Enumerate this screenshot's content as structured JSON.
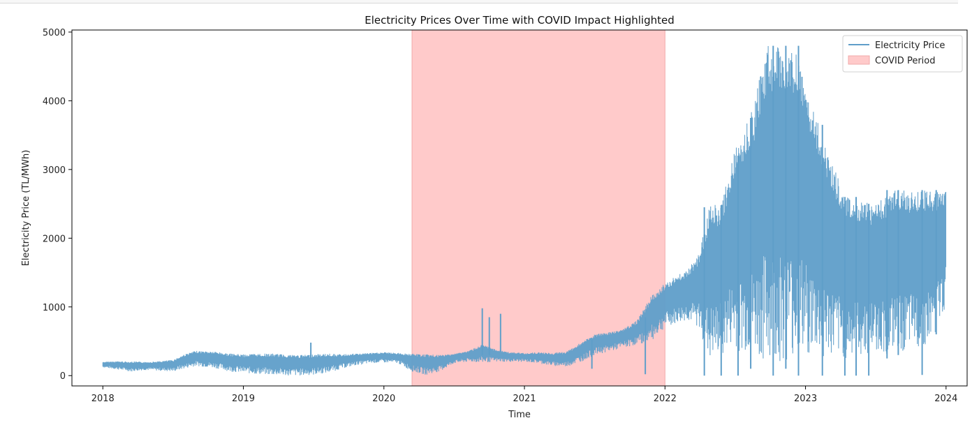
{
  "chart_data": {
    "type": "line",
    "title": "Electricity Prices Over Time with COVID Impact Highlighted",
    "xlabel": "Time",
    "ylabel": "Electricity Price (TL/MWh)",
    "xlim": [
      2017.78,
      2024.15
    ],
    "ylim": [
      -150,
      5030
    ],
    "x_ticks": [
      2018,
      2019,
      2020,
      2021,
      2022,
      2023,
      2024
    ],
    "x_tick_labels": [
      "2018",
      "2019",
      "2020",
      "2021",
      "2022",
      "2023",
      "2024"
    ],
    "y_ticks": [
      0,
      1000,
      2000,
      3000,
      4000,
      5000
    ],
    "y_tick_labels": [
      "0",
      "1000",
      "2000",
      "3000",
      "4000",
      "5000"
    ],
    "grid": false,
    "legend_position": "top-right",
    "legend": [
      "Electricity Price",
      "COVID Period"
    ],
    "highlight_period": {
      "name": "COVID Period",
      "start": 2020.2,
      "end": 2022.0,
      "color": "#ffcaca"
    },
    "series": [
      {
        "name": "Electricity Price",
        "color": "#5f9ec9",
        "envelope": [
          {
            "x": 2018.0,
            "low": 120,
            "high": 200
          },
          {
            "x": 2018.1,
            "low": 90,
            "high": 210
          },
          {
            "x": 2018.2,
            "low": 60,
            "high": 205
          },
          {
            "x": 2018.3,
            "low": 80,
            "high": 200
          },
          {
            "x": 2018.4,
            "low": 70,
            "high": 210
          },
          {
            "x": 2018.5,
            "low": 60,
            "high": 230
          },
          {
            "x": 2018.58,
            "low": 100,
            "high": 310
          },
          {
            "x": 2018.66,
            "low": 140,
            "high": 360
          },
          {
            "x": 2018.8,
            "low": 110,
            "high": 350
          },
          {
            "x": 2018.9,
            "low": 60,
            "high": 320
          },
          {
            "x": 2019.0,
            "low": 40,
            "high": 310
          },
          {
            "x": 2019.1,
            "low": 20,
            "high": 320
          },
          {
            "x": 2019.2,
            "low": 10,
            "high": 320
          },
          {
            "x": 2019.3,
            "low": 0,
            "high": 310
          },
          {
            "x": 2019.4,
            "low": 0,
            "high": 300
          },
          {
            "x": 2019.5,
            "low": 10,
            "high": 310
          },
          {
            "x": 2019.6,
            "low": 40,
            "high": 320
          },
          {
            "x": 2019.7,
            "low": 100,
            "high": 310
          },
          {
            "x": 2019.8,
            "low": 150,
            "high": 320
          },
          {
            "x": 2019.9,
            "low": 180,
            "high": 330
          },
          {
            "x": 2020.0,
            "low": 190,
            "high": 340
          },
          {
            "x": 2020.1,
            "low": 180,
            "high": 330
          },
          {
            "x": 2020.2,
            "low": 60,
            "high": 320
          },
          {
            "x": 2020.3,
            "low": 10,
            "high": 310
          },
          {
            "x": 2020.4,
            "low": 60,
            "high": 300
          },
          {
            "x": 2020.5,
            "low": 180,
            "high": 320
          },
          {
            "x": 2020.6,
            "low": 200,
            "high": 360
          },
          {
            "x": 2020.7,
            "low": 190,
            "high": 450
          },
          {
            "x": 2020.8,
            "low": 200,
            "high": 380
          },
          {
            "x": 2020.9,
            "low": 200,
            "high": 340
          },
          {
            "x": 2021.0,
            "low": 200,
            "high": 330
          },
          {
            "x": 2021.1,
            "low": 180,
            "high": 340
          },
          {
            "x": 2021.2,
            "low": 140,
            "high": 330
          },
          {
            "x": 2021.3,
            "low": 130,
            "high": 350
          },
          {
            "x": 2021.4,
            "low": 200,
            "high": 480
          },
          {
            "x": 2021.5,
            "low": 300,
            "high": 600
          },
          {
            "x": 2021.6,
            "low": 350,
            "high": 630
          },
          {
            "x": 2021.7,
            "low": 400,
            "high": 680
          },
          {
            "x": 2021.8,
            "low": 450,
            "high": 800
          },
          {
            "x": 2021.9,
            "low": 500,
            "high": 1150
          },
          {
            "x": 2022.0,
            "low": 700,
            "high": 1350
          },
          {
            "x": 2022.08,
            "low": 750,
            "high": 1450
          },
          {
            "x": 2022.16,
            "low": 800,
            "high": 1550
          },
          {
            "x": 2022.24,
            "low": 700,
            "high": 1760
          },
          {
            "x": 2022.32,
            "low": 200,
            "high": 2500
          },
          {
            "x": 2022.4,
            "low": 300,
            "high": 2500
          },
          {
            "x": 2022.48,
            "low": 400,
            "high": 3200
          },
          {
            "x": 2022.56,
            "low": 300,
            "high": 3600
          },
          {
            "x": 2022.64,
            "low": 250,
            "high": 4000
          },
          {
            "x": 2022.72,
            "low": 200,
            "high": 4800
          },
          {
            "x": 2022.82,
            "low": 200,
            "high": 4800
          },
          {
            "x": 2022.92,
            "low": 250,
            "high": 4800
          },
          {
            "x": 2023.0,
            "low": 300,
            "high": 4200
          },
          {
            "x": 2023.1,
            "low": 250,
            "high": 3650
          },
          {
            "x": 2023.2,
            "low": 250,
            "high": 3050
          },
          {
            "x": 2023.3,
            "low": 250,
            "high": 2600
          },
          {
            "x": 2023.4,
            "low": 300,
            "high": 2550
          },
          {
            "x": 2023.5,
            "low": 350,
            "high": 2500
          },
          {
            "x": 2023.6,
            "low": 300,
            "high": 2700
          },
          {
            "x": 2023.7,
            "low": 350,
            "high": 2700
          },
          {
            "x": 2023.8,
            "low": 400,
            "high": 2700
          },
          {
            "x": 2023.9,
            "low": 500,
            "high": 2700
          },
          {
            "x": 2024.0,
            "low": 1000,
            "high": 2700
          }
        ],
        "spikes": [
          {
            "x": 2019.48,
            "low": 250,
            "high": 480
          },
          {
            "x": 2020.7,
            "low": 300,
            "high": 980
          },
          {
            "x": 2020.75,
            "low": 300,
            "high": 850
          },
          {
            "x": 2020.83,
            "low": 350,
            "high": 900
          },
          {
            "x": 2021.48,
            "low": 100,
            "high": 520
          },
          {
            "x": 2021.86,
            "low": 20,
            "high": 850
          },
          {
            "x": 2022.28,
            "low": 0,
            "high": 2450
          },
          {
            "x": 2022.4,
            "low": 0,
            "high": 2480
          },
          {
            "x": 2022.52,
            "low": 0,
            "high": 3200
          },
          {
            "x": 2022.61,
            "low": 100,
            "high": 3750
          },
          {
            "x": 2022.77,
            "low": 0,
            "high": 4800
          },
          {
            "x": 2022.86,
            "low": 100,
            "high": 4800
          },
          {
            "x": 2022.95,
            "low": 0,
            "high": 4800
          },
          {
            "x": 2023.12,
            "low": 0,
            "high": 3650
          },
          {
            "x": 2023.28,
            "low": 0,
            "high": 2600
          },
          {
            "x": 2023.36,
            "low": 0,
            "high": 2600
          },
          {
            "x": 2023.45,
            "low": 0,
            "high": 2500
          },
          {
            "x": 2023.58,
            "low": 250,
            "high": 2700
          },
          {
            "x": 2023.66,
            "low": 300,
            "high": 2700
          },
          {
            "x": 2023.83,
            "low": 10,
            "high": 2700
          },
          {
            "x": 2023.93,
            "low": 600,
            "high": 2700
          }
        ]
      }
    ]
  }
}
